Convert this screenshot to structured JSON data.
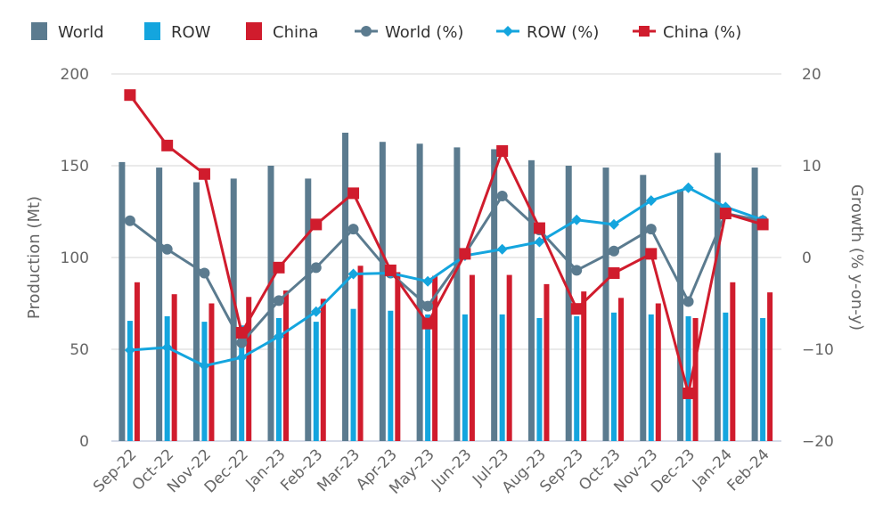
{
  "chart_data": {
    "type": "bar",
    "categories": [
      "Sep-22",
      "Oct-22",
      "Nov-22",
      "Dec-22",
      "Jan-23",
      "Feb-23",
      "Mar-23",
      "Apr-23",
      "May-23",
      "Jun-23",
      "Jul-23",
      "Aug-23",
      "Sep-23",
      "Oct-23",
      "Nov-23",
      "Dec-23",
      "Jan-24",
      "Feb-24"
    ],
    "ylabel": "Production (Mt)",
    "y2label": "Growth (% y-on-y)",
    "ylim": [
      0,
      200
    ],
    "y2lim": [
      -20,
      20
    ],
    "yticks": [
      "0",
      "50",
      "100",
      "150",
      "200"
    ],
    "y2ticks": [
      "-20",
      "-10",
      "0",
      "10",
      "20"
    ],
    "grid": true,
    "legend_position": "top",
    "series": [
      {
        "name": "World",
        "kind": "bar",
        "axis": "left",
        "color": "#5b7b8f",
        "values": [
          152,
          149,
          141,
          143,
          150,
          143,
          168,
          163,
          162,
          160,
          159,
          153,
          150,
          149,
          145,
          137,
          157,
          149
        ]
      },
      {
        "name": "ROW",
        "kind": "bar",
        "axis": "left",
        "color": "#14a5de",
        "values": [
          65.5,
          68,
          65,
          63,
          67,
          65,
          72,
          71,
          69,
          69,
          69,
          67,
          68,
          70,
          69,
          68,
          70,
          67
        ]
      },
      {
        "name": "China",
        "kind": "bar",
        "axis": "left",
        "color": "#d01c2d",
        "values": [
          86.5,
          80,
          75,
          78.5,
          82,
          77.5,
          95.5,
          92,
          90,
          90.5,
          90.5,
          85.5,
          81.5,
          78,
          75,
          67,
          86.5,
          81
        ]
      },
      {
        "name": "World (%)",
        "kind": "line",
        "marker": "circle",
        "axis": "right",
        "color": "#5b7b8f",
        "values": [
          4.0,
          0.9,
          -1.7,
          -9.3,
          -4.7,
          -1.1,
          3.1,
          -1.7,
          -5.3,
          0.4,
          6.7,
          3.0,
          -1.4,
          0.7,
          3.1,
          -4.8,
          4.8,
          4.0
        ]
      },
      {
        "name": "ROW (%)",
        "kind": "line",
        "marker": "diamond",
        "axis": "right",
        "color": "#14a5de",
        "values": [
          -10.1,
          -9.8,
          -11.8,
          -10.9,
          -8.6,
          -5.9,
          -1.8,
          -1.7,
          -2.6,
          0.2,
          0.9,
          1.7,
          4.1,
          3.6,
          6.2,
          7.6,
          5.5,
          4.1
        ]
      },
      {
        "name": "China (%)",
        "kind": "line",
        "marker": "square",
        "axis": "right",
        "color": "#d01c2d",
        "values": [
          17.7,
          12.2,
          9.1,
          -8.2,
          -1.1,
          3.6,
          7.0,
          -1.4,
          -7.2,
          0.4,
          11.6,
          3.2,
          -5.6,
          -1.7,
          0.4,
          -14.8,
          4.8,
          3.6
        ]
      }
    ]
  }
}
